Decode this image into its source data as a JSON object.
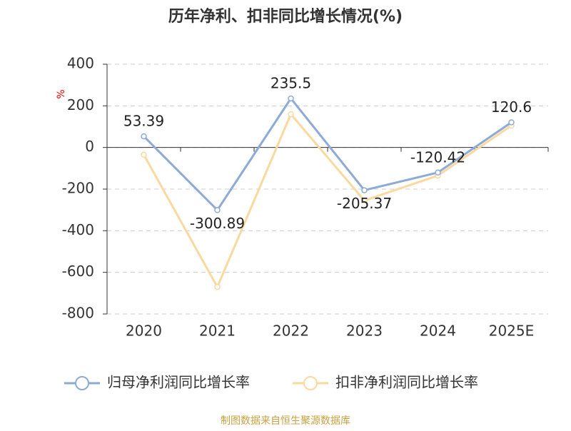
{
  "chart_data": {
    "type": "line",
    "title": "历年净利、扣非同比增长情况(%)",
    "y_unit": "%",
    "source": "制图数据来自恒生聚源数据库",
    "categories": [
      "2020",
      "2021",
      "2022",
      "2023",
      "2024",
      "2025E"
    ],
    "series": [
      {
        "name": "归母净利润同比增长率",
        "color": "#8eaad6",
        "values": [
          53.39,
          -300.89,
          235.5,
          -205.37,
          -120.42,
          120.6
        ],
        "show_labels": true
      },
      {
        "name": "扣非净利润同比增长率",
        "color": "#fad9a0",
        "values": [
          -35,
          -670,
          160,
          -255,
          -135,
          105
        ],
        "show_labels": false
      }
    ],
    "ylim": [
      -800,
      400
    ],
    "yticks": [
      -800,
      -600,
      -400,
      -200,
      0,
      200,
      400
    ],
    "grid": true,
    "legend": "bottom"
  }
}
